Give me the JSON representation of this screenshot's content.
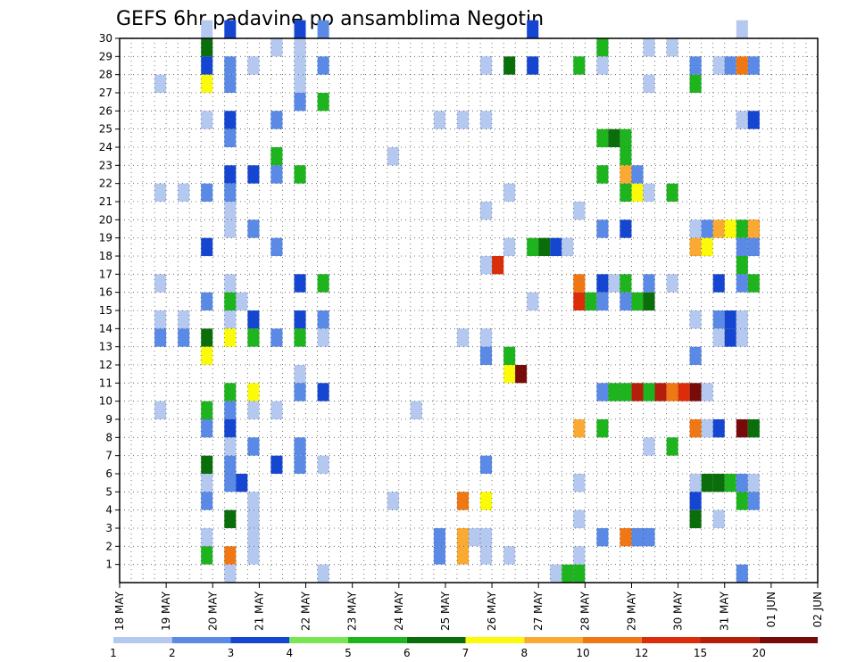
{
  "chart_data": {
    "type": "heatmap",
    "title": "GEFS 6hr padavine po ansamblima Negotin",
    "xlabel": "",
    "ylabel": "",
    "x_tick_labels": [
      "18 MAY",
      "19 MAY",
      "20 MAY",
      "21 MAY",
      "22 MAY",
      "23 MAY",
      "24 MAY",
      "25 MAY",
      "26 MAY",
      "27 MAY",
      "28 MAY",
      "29 MAY",
      "30 MAY",
      "31 MAY",
      "01 JUN",
      "02 JUN"
    ],
    "y_tick_labels": [
      "1",
      "2",
      "3",
      "4",
      "5",
      "6",
      "7",
      "8",
      "9",
      "10",
      "11",
      "12",
      "13",
      "14",
      "15",
      "16",
      "17",
      "18",
      "19",
      "20",
      "21",
      "22",
      "23",
      "24",
      "25",
      "26",
      "27",
      "28",
      "29",
      "30"
    ],
    "x_unit": "6-hour step (4 per day)",
    "ylim": [
      0,
      30
    ],
    "grid": true,
    "legend": {
      "placement": "bottom",
      "boundaries": [
        1,
        2,
        3,
        4,
        5,
        6,
        7,
        8,
        10,
        12,
        15,
        20
      ],
      "labels": [
        "1",
        "2",
        "3",
        "4",
        "5",
        "6",
        "7",
        "8",
        "10",
        "12",
        "15",
        "20"
      ],
      "colors": [
        "#b4c8f0",
        "#5a8ae6",
        "#1446d2",
        "#78e650",
        "#1eb41e",
        "#0a6e0a",
        "#fafa0a",
        "#faaa32",
        "#f07814",
        "#dc2d0a",
        "#b41e0a",
        "#780a0a"
      ]
    },
    "cells": [
      [
        3,
        30,
        1
      ],
      [
        4,
        30,
        3
      ],
      [
        7,
        30,
        3
      ],
      [
        8,
        30,
        2
      ],
      [
        17,
        30,
        3
      ],
      [
        26,
        30,
        1
      ],
      [
        3,
        29,
        6
      ],
      [
        6,
        29,
        1
      ],
      [
        7,
        29,
        1
      ],
      [
        20,
        29,
        5
      ],
      [
        22,
        29,
        1
      ],
      [
        23,
        29,
        1
      ],
      [
        3,
        28,
        3
      ],
      [
        4,
        28,
        2
      ],
      [
        5,
        28,
        1
      ],
      [
        7,
        28,
        1
      ],
      [
        8,
        28,
        2
      ],
      [
        15,
        28,
        1
      ],
      [
        16,
        28,
        6
      ],
      [
        17,
        28,
        3
      ],
      [
        19,
        28,
        5
      ],
      [
        20,
        28,
        1
      ],
      [
        24,
        28,
        2
      ],
      [
        25,
        28,
        1
      ],
      [
        25,
        28,
        2
      ],
      [
        26,
        28,
        9
      ],
      [
        26,
        28,
        2
      ],
      [
        1,
        27,
        1
      ],
      [
        3,
        27,
        7
      ],
      [
        4,
        27,
        2
      ],
      [
        7,
        27,
        1
      ],
      [
        22,
        27,
        1
      ],
      [
        24,
        27,
        5
      ],
      [
        7,
        26,
        2
      ],
      [
        8,
        26,
        5
      ],
      [
        3,
        25,
        1
      ],
      [
        4,
        25,
        3
      ],
      [
        6,
        25,
        2
      ],
      [
        13,
        25,
        1
      ],
      [
        14,
        25,
        1
      ],
      [
        15,
        25,
        1
      ],
      [
        26,
        25,
        1
      ],
      [
        26,
        25,
        3
      ],
      [
        4,
        24,
        2
      ],
      [
        20,
        24,
        5
      ],
      [
        20,
        24,
        6
      ],
      [
        21,
        24,
        5
      ],
      [
        6,
        23,
        5
      ],
      [
        11,
        23,
        1
      ],
      [
        21,
        23,
        5
      ],
      [
        4,
        22,
        3
      ],
      [
        5,
        22,
        3
      ],
      [
        6,
        22,
        2
      ],
      [
        7,
        22,
        5
      ],
      [
        20,
        22,
        5
      ],
      [
        21,
        22,
        8
      ],
      [
        21,
        22,
        2
      ],
      [
        1,
        21,
        1
      ],
      [
        2,
        21,
        1
      ],
      [
        3,
        21,
        2
      ],
      [
        4,
        21,
        2
      ],
      [
        16,
        21,
        1
      ],
      [
        21,
        21,
        5
      ],
      [
        21,
        21,
        7
      ],
      [
        22,
        21,
        1
      ],
      [
        23,
        21,
        5
      ],
      [
        4,
        20,
        1
      ],
      [
        15,
        20,
        1
      ],
      [
        19,
        20,
        1
      ],
      [
        4,
        19,
        1
      ],
      [
        5,
        19,
        2
      ],
      [
        20,
        19,
        2
      ],
      [
        21,
        19,
        3
      ],
      [
        24,
        19,
        1
      ],
      [
        24,
        19,
        2
      ],
      [
        25,
        19,
        8
      ],
      [
        25,
        19,
        7
      ],
      [
        26,
        19,
        5
      ],
      [
        26,
        19,
        11
      ],
      [
        26,
        19,
        8
      ],
      [
        3,
        18,
        3
      ],
      [
        6,
        18,
        2
      ],
      [
        16,
        18,
        1
      ],
      [
        17,
        18,
        5
      ],
      [
        17,
        18,
        6
      ],
      [
        18,
        18,
        3
      ],
      [
        18,
        18,
        1
      ],
      [
        24,
        18,
        8
      ],
      [
        24,
        18,
        7
      ],
      [
        26,
        18,
        2
      ],
      [
        26,
        18,
        2
      ],
      [
        15,
        17,
        1
      ],
      [
        15,
        17,
        4
      ],
      [
        15,
        17,
        10
      ],
      [
        26,
        17,
        5
      ],
      [
        1,
        16,
        1
      ],
      [
        4,
        16,
        1
      ],
      [
        7,
        16,
        3
      ],
      [
        8,
        16,
        5
      ],
      [
        19,
        16,
        9
      ],
      [
        20,
        16,
        3
      ],
      [
        20,
        16,
        1
      ],
      [
        21,
        16,
        5
      ],
      [
        22,
        16,
        2
      ],
      [
        23,
        16,
        1
      ],
      [
        25,
        16,
        3
      ],
      [
        26,
        16,
        2
      ],
      [
        26,
        16,
        5
      ],
      [
        3,
        15,
        2
      ],
      [
        4,
        15,
        5
      ],
      [
        4,
        15,
        1
      ],
      [
        17,
        15,
        1
      ],
      [
        19,
        15,
        10
      ],
      [
        19,
        15,
        5
      ],
      [
        20,
        15,
        2
      ],
      [
        21,
        15,
        2
      ],
      [
        21,
        15,
        5
      ],
      [
        22,
        15,
        6
      ],
      [
        1,
        14,
        1
      ],
      [
        2,
        14,
        1
      ],
      [
        4,
        14,
        1
      ],
      [
        5,
        14,
        3
      ],
      [
        7,
        14,
        3
      ],
      [
        8,
        14,
        2
      ],
      [
        24,
        14,
        1
      ],
      [
        25,
        14,
        2
      ],
      [
        25,
        14,
        3
      ],
      [
        26,
        14,
        1
      ],
      [
        1,
        13,
        2
      ],
      [
        2,
        13,
        2
      ],
      [
        3,
        13,
        6
      ],
      [
        4,
        13,
        7
      ],
      [
        5,
        13,
        5
      ],
      [
        6,
        13,
        2
      ],
      [
        7,
        13,
        5
      ],
      [
        8,
        13,
        1
      ],
      [
        14,
        13,
        1
      ],
      [
        15,
        13,
        1
      ],
      [
        25,
        13,
        1
      ],
      [
        25,
        13,
        3
      ],
      [
        26,
        13,
        1
      ],
      [
        3,
        12,
        7
      ],
      [
        15,
        12,
        2
      ],
      [
        16,
        12,
        5
      ],
      [
        24,
        12,
        2
      ],
      [
        7,
        11,
        1
      ],
      [
        16,
        11,
        7
      ],
      [
        16,
        11,
        12
      ],
      [
        20,
        10,
        2
      ],
      [
        20,
        10,
        5
      ],
      [
        21,
        10,
        5
      ],
      [
        21,
        10,
        11
      ],
      [
        22,
        10,
        5
      ],
      [
        22,
        10,
        11
      ],
      [
        23,
        10,
        9
      ],
      [
        23,
        10,
        10
      ],
      [
        24,
        10,
        12
      ],
      [
        24,
        10,
        1
      ],
      [
        4,
        10,
        5
      ],
      [
        5,
        10,
        7
      ],
      [
        7,
        10,
        2
      ],
      [
        8,
        10,
        3
      ],
      [
        1,
        9,
        1
      ],
      [
        3,
        9,
        5
      ],
      [
        4,
        9,
        2
      ],
      [
        5,
        9,
        1
      ],
      [
        6,
        9,
        1
      ],
      [
        12,
        9,
        1
      ],
      [
        3,
        8,
        2
      ],
      [
        4,
        8,
        3
      ],
      [
        19,
        8,
        8
      ],
      [
        20,
        8,
        5
      ],
      [
        24,
        8,
        9
      ],
      [
        24,
        8,
        1
      ],
      [
        25,
        8,
        3
      ],
      [
        26,
        8,
        12
      ],
      [
        26,
        8,
        6
      ],
      [
        4,
        7,
        1
      ],
      [
        5,
        7,
        2
      ],
      [
        7,
        7,
        2
      ],
      [
        22,
        7,
        1
      ],
      [
        23,
        7,
        5
      ],
      [
        3,
        6,
        6
      ],
      [
        4,
        6,
        2
      ],
      [
        6,
        6,
        3
      ],
      [
        7,
        6,
        2
      ],
      [
        8,
        6,
        1
      ],
      [
        15,
        6,
        2
      ],
      [
        3,
        5,
        1
      ],
      [
        4,
        5,
        2
      ],
      [
        4,
        5,
        3
      ],
      [
        19,
        5,
        1
      ],
      [
        24,
        5,
        1
      ],
      [
        24,
        5,
        6
      ],
      [
        25,
        5,
        6
      ],
      [
        25,
        5,
        5
      ],
      [
        26,
        5,
        2
      ],
      [
        26,
        5,
        1
      ],
      [
        3,
        4,
        2
      ],
      [
        5,
        4,
        1
      ],
      [
        11,
        4,
        1
      ],
      [
        14,
        4,
        9
      ],
      [
        15,
        4,
        7
      ],
      [
        24,
        4,
        3
      ],
      [
        26,
        4,
        5
      ],
      [
        26,
        4,
        2
      ],
      [
        4,
        3,
        6
      ],
      [
        5,
        3,
        1
      ],
      [
        19,
        3,
        1
      ],
      [
        24,
        3,
        6
      ],
      [
        25,
        3,
        1
      ],
      [
        3,
        2,
        1
      ],
      [
        5,
        2,
        1
      ],
      [
        13,
        2,
        2
      ],
      [
        14,
        2,
        8
      ],
      [
        14,
        2,
        1
      ],
      [
        15,
        2,
        1
      ],
      [
        20,
        2,
        2
      ],
      [
        21,
        2,
        9
      ],
      [
        21,
        2,
        2
      ],
      [
        22,
        2,
        2
      ],
      [
        3,
        1,
        5
      ],
      [
        4,
        1,
        9
      ],
      [
        5,
        1,
        1
      ],
      [
        13,
        1,
        2
      ],
      [
        14,
        1,
        8
      ],
      [
        15,
        1,
        1
      ],
      [
        16,
        1,
        1
      ],
      [
        19,
        1,
        1
      ],
      [
        4,
        0,
        1
      ],
      [
        8,
        0,
        1
      ],
      [
        18,
        0,
        1
      ],
      [
        18,
        0,
        5
      ],
      [
        19,
        0,
        5
      ],
      [
        26,
        0,
        2
      ]
    ]
  }
}
